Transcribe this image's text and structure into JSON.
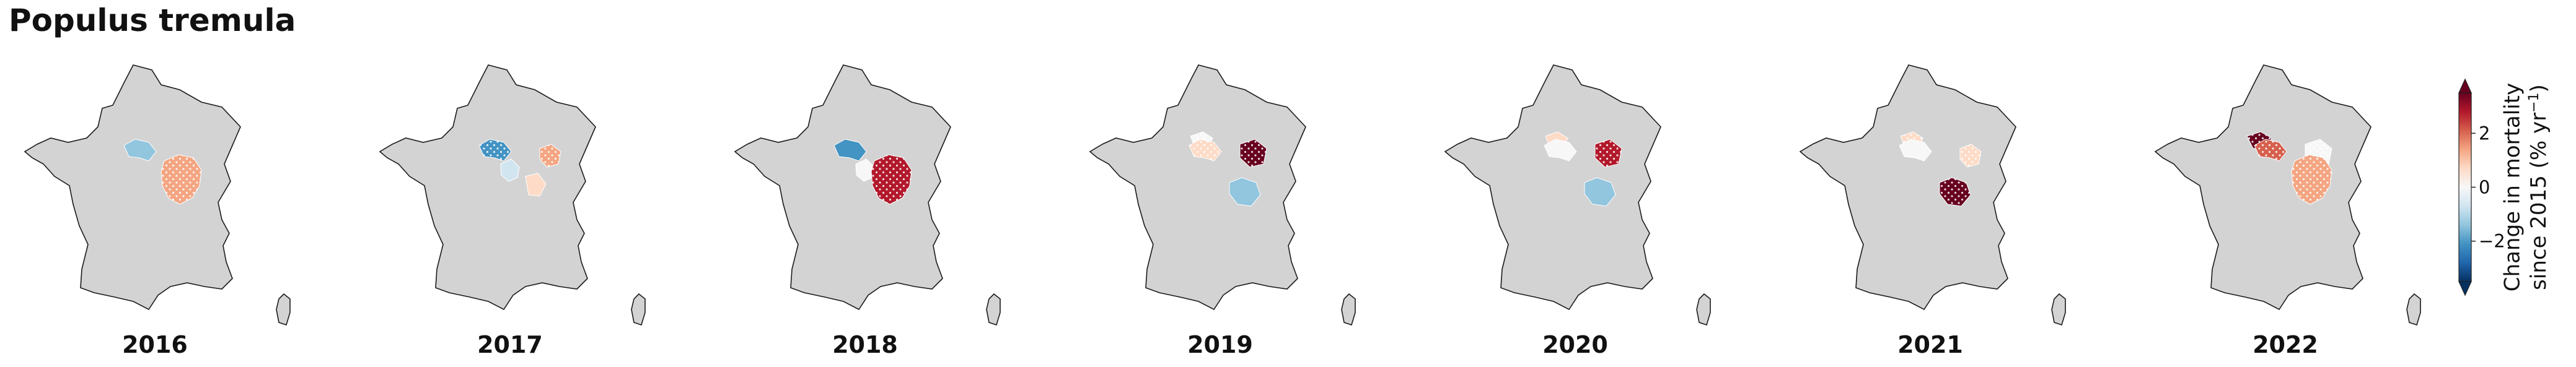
{
  "title": "Populus tremula",
  "colors": {
    "land": "#d3d3d3",
    "coast": "#1a1a1a",
    "scale": [
      "#053061",
      "#2166ac",
      "#4393c3",
      "#92c5de",
      "#d1e5f0",
      "#f7f7f7",
      "#fddbc7",
      "#f4a582",
      "#d6604d",
      "#b2182b",
      "#67001f"
    ]
  },
  "maps": [
    {
      "year": "2016",
      "regions": [
        {
          "id": "centre",
          "value": -1.3,
          "hatch": false
        },
        {
          "id": "burgundy",
          "value": 1.3,
          "hatch": true
        }
      ]
    },
    {
      "year": "2017",
      "regions": [
        {
          "id": "centre",
          "value": -2.2,
          "hatch": true
        },
        {
          "id": "loire-south",
          "value": -0.4,
          "hatch": false
        },
        {
          "id": "burgundy-north",
          "value": 1.2,
          "hatch": true
        },
        {
          "id": "burgundy-south",
          "value": 0.6,
          "hatch": false
        }
      ]
    },
    {
      "year": "2018",
      "regions": [
        {
          "id": "centre",
          "value": -1.8,
          "hatch": false
        },
        {
          "id": "loire-south",
          "value": -0.3,
          "hatch": false
        },
        {
          "id": "burgundy",
          "value": 2.5,
          "hatch": true
        }
      ]
    },
    {
      "year": "2019",
      "regions": [
        {
          "id": "idf",
          "value": 0.1,
          "hatch": true
        },
        {
          "id": "centre",
          "value": 0.8,
          "hatch": true
        },
        {
          "id": "champagne",
          "value": 3.3,
          "hatch": true
        },
        {
          "id": "allier",
          "value": -1.2,
          "hatch": false
        }
      ]
    },
    {
      "year": "2020",
      "regions": [
        {
          "id": "idf",
          "value": 0.7,
          "hatch": false
        },
        {
          "id": "centre",
          "value": -0.3,
          "hatch": false
        },
        {
          "id": "champagne",
          "value": 2.8,
          "hatch": true
        },
        {
          "id": "allier",
          "value": -1.3,
          "hatch": false
        }
      ]
    },
    {
      "year": "2021",
      "regions": [
        {
          "id": "idf",
          "value": 0.9,
          "hatch": true
        },
        {
          "id": "centre",
          "value": 0.0,
          "hatch": false
        },
        {
          "id": "burgundy-north",
          "value": 0.6,
          "hatch": true
        },
        {
          "id": "allier",
          "value": 3.4,
          "hatch": true
        }
      ]
    },
    {
      "year": "2022",
      "regions": [
        {
          "id": "idf-west",
          "value": 3.2,
          "hatch": true
        },
        {
          "id": "centre",
          "value": 2.3,
          "hatch": true
        },
        {
          "id": "champagne",
          "value": 0.1,
          "hatch": true
        },
        {
          "id": "burgundy",
          "value": 1.5,
          "hatch": true
        }
      ]
    }
  ],
  "colorbar": {
    "label_line1": "Change in mortality",
    "label_line2": "since 2015 (% yr",
    "label_sup": "−1",
    "label_close": ")",
    "min": -3.5,
    "max": 3.5,
    "ticks": [
      {
        "value": 2,
        "label": "2"
      },
      {
        "value": 0,
        "label": "0"
      },
      {
        "value": -2,
        "label": "−2"
      }
    ]
  }
}
